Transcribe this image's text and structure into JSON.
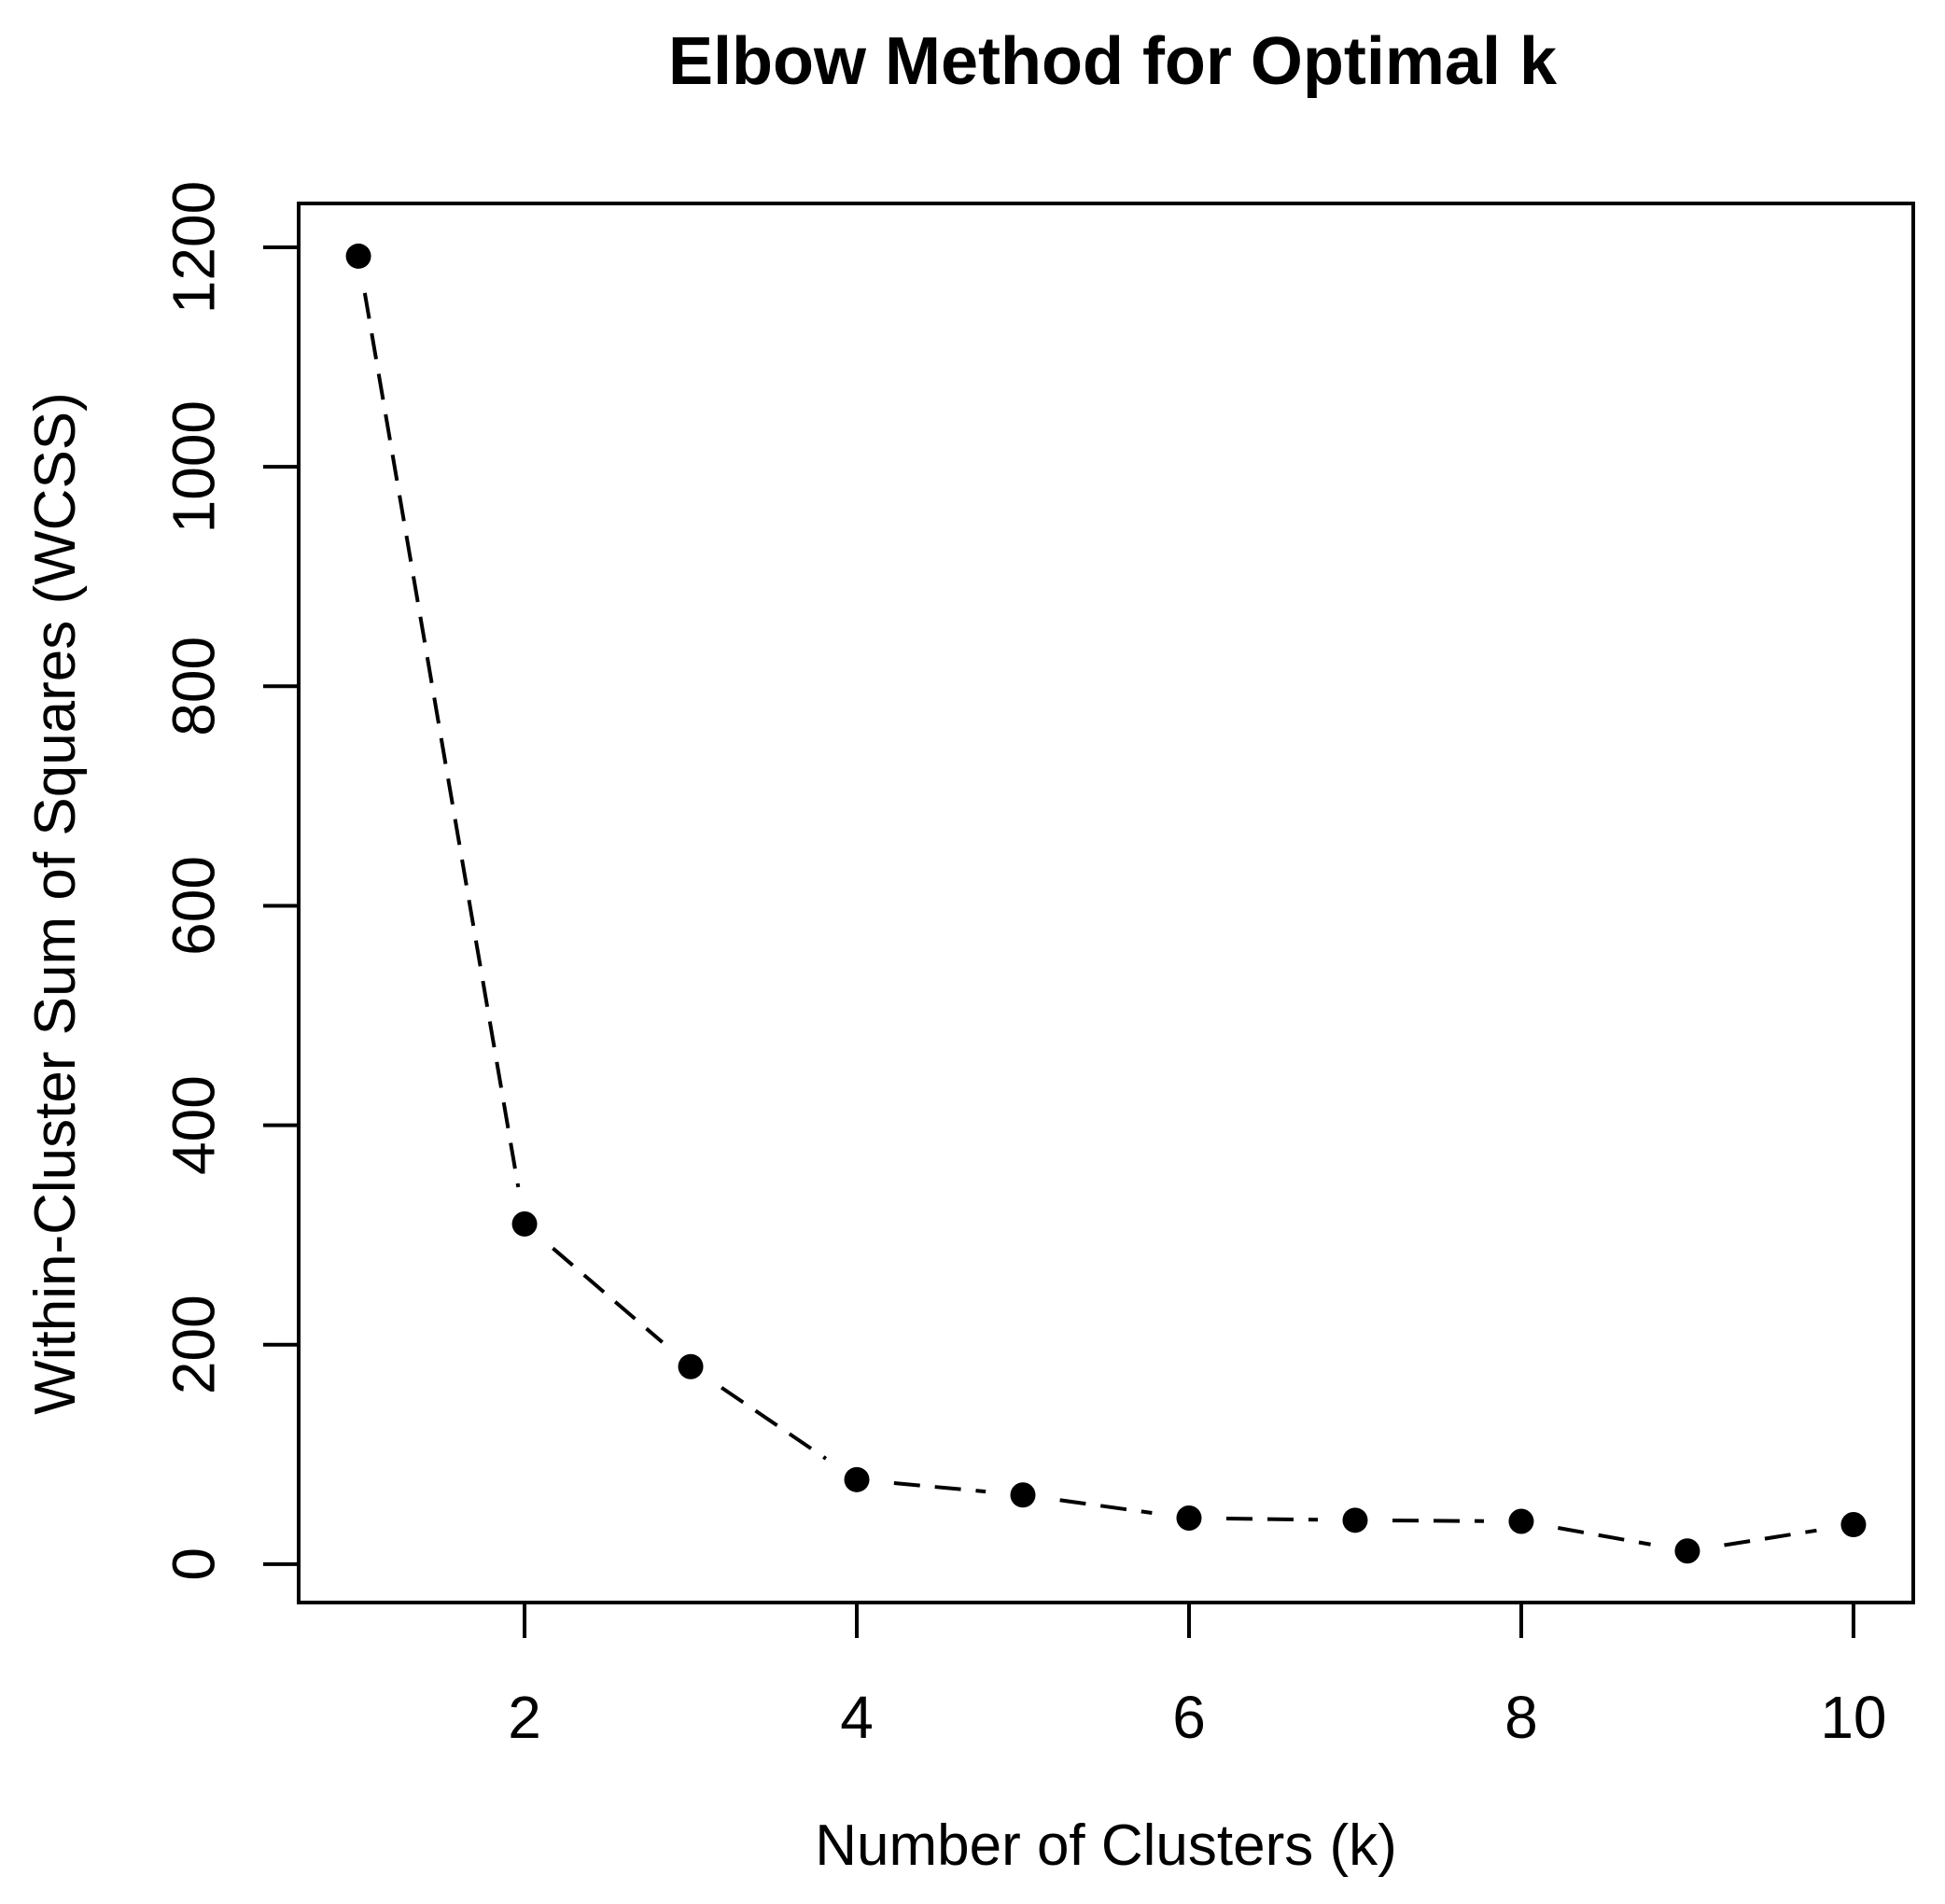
{
  "chart_data": {
    "type": "line",
    "title": "Elbow Method for Optimal k",
    "xlabel": "Number of Clusters (k)",
    "ylabel": "Within-Cluster Sum of Squares (WCSS)",
    "x": [
      1,
      2,
      3,
      4,
      5,
      6,
      7,
      8,
      9,
      10
    ],
    "series": [
      {
        "name": "WCSS",
        "values": [
          1192,
          310,
          180,
          77,
          63,
          42,
          40,
          39,
          12,
          36
        ]
      }
    ],
    "xticks": {
      "positions": [
        2,
        4,
        6,
        8,
        10
      ],
      "labels": [
        "2",
        "4",
        "6",
        "8",
        "10"
      ]
    },
    "yticks": {
      "positions": [
        0,
        200,
        400,
        600,
        800,
        1000,
        1200
      ],
      "labels": [
        "0",
        "200",
        "400",
        "600",
        "800",
        "1000",
        "1200"
      ]
    },
    "xlim": [
      0.64,
      10.36
    ],
    "ylim": [
      -35,
      1240
    ],
    "grid": false,
    "legend": null,
    "line_style": "dashed",
    "marker": "filled-circle",
    "colors": {
      "series": "#000000",
      "axis": "#000000",
      "text": "#000000",
      "background": "#ffffff"
    }
  }
}
